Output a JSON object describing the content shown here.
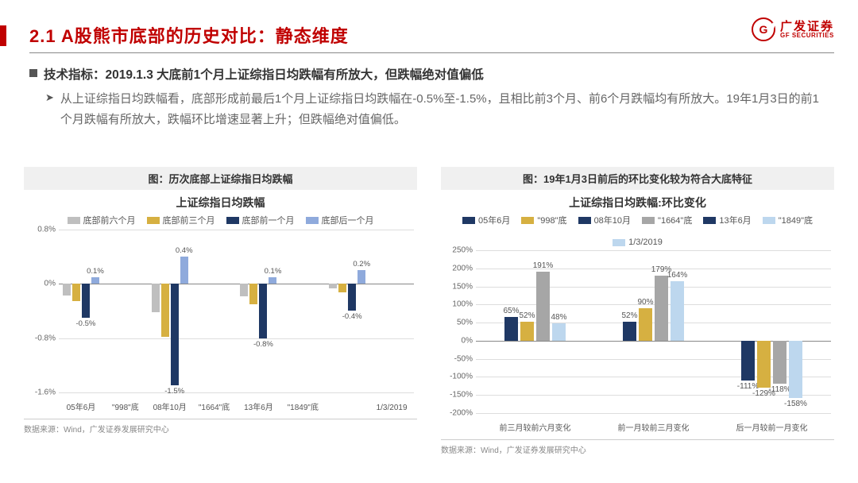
{
  "header": {
    "title": "2.1  A股熊市底部的历史对比：静态维度",
    "logo_cn": "广发证券",
    "logo_en": "GF SECURITIES",
    "logo_g": "G"
  },
  "bullets": {
    "b1_label": "技术指标：",
    "b1_text": "2019.1.3 大底前1个月上证综指日均跌幅有所放大，但跌幅绝对值偏低",
    "b2_arrow": "➤",
    "b2_text": "从上证综指日均跌幅看，底部形成前最后1个月上证综指日均跌幅在-0.5%至-1.5%，且相比前3个月、前6个月跌幅均有所放大。19年1月3日的前1个月跌幅有所放大，跌幅环比增速显著上升；但跌幅绝对值偏低。"
  },
  "chart1": {
    "caption": "图：历次底部上证综指日均跌幅",
    "subtitle": "上证综指日均跌幅",
    "legend": [
      {
        "label": "底部前六个月",
        "color": "#bfbfbf"
      },
      {
        "label": "底部前三个月",
        "color": "#d6b041"
      },
      {
        "label": "底部前一个月",
        "color": "#1f3864"
      },
      {
        "label": "底部后一个月",
        "color": "#8faadc"
      }
    ],
    "y_ticks": [
      0.8,
      0.0,
      -0.8,
      -1.6
    ],
    "y_suffix": "%",
    "ylim": [
      -1.6,
      0.8
    ],
    "categories": [
      "05年6月",
      "\"998\"底",
      "08年10月",
      "\"1664\"底",
      "13年6月",
      "\"1849\"底",
      "",
      "1/3/2019"
    ],
    "groups": [
      {
        "values": [
          -0.17,
          -0.25,
          -0.5,
          0.1
        ],
        "labels": [
          null,
          null,
          "-0.5%",
          "0.1%"
        ]
      },
      {
        "values": [
          -0.42,
          -0.78,
          -1.5,
          0.4
        ],
        "labels": [
          null,
          null,
          "-1.5%",
          "0.4%"
        ]
      },
      {
        "values": [
          -0.18,
          -0.3,
          -0.8,
          0.1
        ],
        "labels": [
          null,
          null,
          "-0.8%",
          "0.1%"
        ]
      },
      {
        "values": [
          -0.07,
          -0.12,
          -0.4,
          0.2
        ],
        "labels": [
          null,
          null,
          "-0.4%",
          "0.2%"
        ]
      }
    ],
    "source": "数据来源：Wind，广发证券发展研究中心"
  },
  "chart2": {
    "caption": "图：19年1月3日前后的环比变化较为符合大底特征",
    "subtitle": "上证综指日均跌幅:环比变化",
    "legend": [
      {
        "label": "05年6月",
        "color": "#1f3864"
      },
      {
        "label": "\"998\"底",
        "color": "#d6b041"
      },
      {
        "label": "08年10月",
        "color": "#1f3864"
      },
      {
        "label": "\"1664\"底",
        "color": "#a6a6a6"
      },
      {
        "label": "13年6月",
        "color": "#1f3864"
      },
      {
        "label": "\"1849\"底",
        "color": "#bdd7ee"
      },
      {
        "label": "1/3/2019",
        "color": "#bdd7ee"
      }
    ],
    "series_colors": [
      "#1f3864",
      "#d6b041",
      "#a6a6a6",
      "#bdd7ee"
    ],
    "y_ticks": [
      250,
      200,
      150,
      100,
      50,
      0,
      -50,
      -100,
      -150,
      -200
    ],
    "y_suffix": "%",
    "ylim": [
      -200,
      250
    ],
    "categories": [
      "前三月较前六月变化",
      "前一月较前三月变化",
      "后一月较前一月变化"
    ],
    "groups": [
      {
        "values": [
          65,
          52,
          191,
          48
        ],
        "labels": [
          "65%",
          "52%",
          "191%",
          "48%"
        ]
      },
      {
        "values": [
          52,
          90,
          179,
          164
        ],
        "labels": [
          "52%",
          "90%",
          "179%",
          "164%"
        ]
      },
      {
        "values": [
          -111,
          -129,
          -118,
          -158
        ],
        "labels": [
          "-111%",
          "-129%",
          "-118%",
          "-158%"
        ]
      }
    ],
    "source": "数据来源：Wind，广发证券发展研究中心"
  }
}
